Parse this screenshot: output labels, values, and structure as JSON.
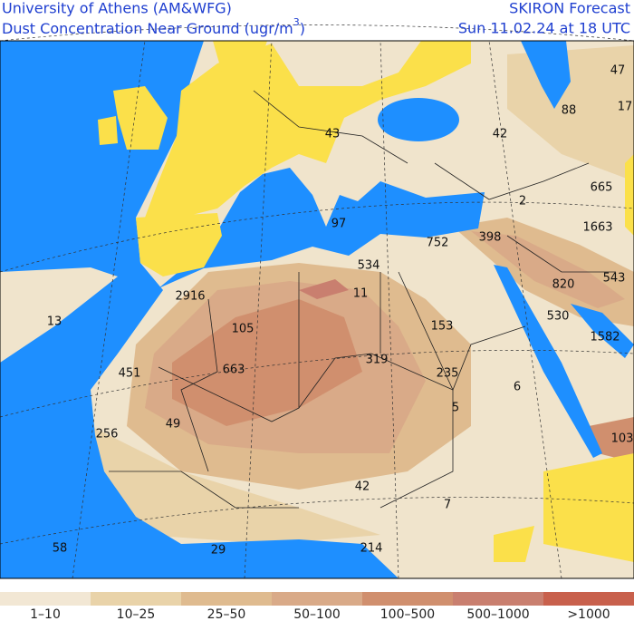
{
  "header": {
    "institution": "University of Athens (AM&WFG)",
    "title": {
      "text": "Dust Concentration Near Ground (ugr/m",
      "superscript": "3",
      "suffix": ")"
    },
    "product": "SKIRON Forecast",
    "date": "Sun 11.02.24 at 18 UTC"
  },
  "map": {
    "labels": [
      47,
      17,
      88,
      43,
      42,
      665,
      2,
      1663,
      97,
      752,
      398,
      543,
      534,
      11,
      820,
      2916,
      13,
      105,
      153,
      530,
      1582,
      319,
      663,
      451,
      235,
      6,
      5,
      49,
      256,
      103,
      42,
      7,
      58,
      29,
      214
    ]
  },
  "legend": {
    "items": [
      {
        "label": "1–10",
        "color": "#f2e7d4"
      },
      {
        "label": "10–25",
        "color": "#e9d3a9"
      },
      {
        "label": "25–50",
        "color": "#dfbb8f"
      },
      {
        "label": "50–100",
        "color": "#d9aa88"
      },
      {
        "label": "100–500",
        "color": "#d08f6e"
      },
      {
        "label": "500–1000",
        "color": "#c97f6f"
      },
      {
        "label": ">1000",
        "color": "#c8604c"
      }
    ]
  }
}
